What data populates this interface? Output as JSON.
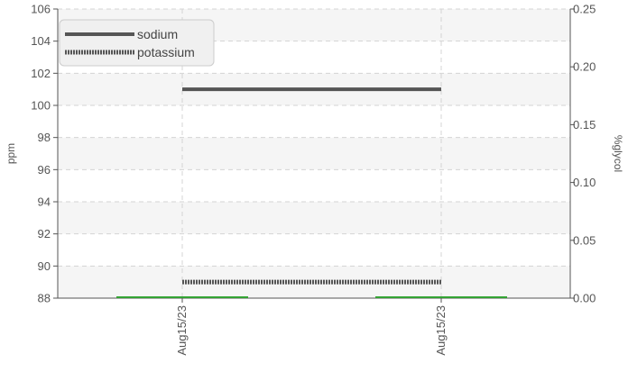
{
  "chart_data": {
    "type": "line",
    "x": [
      "Aug15/23",
      "Aug15/23"
    ],
    "ylabel": "ppm",
    "y2label": "%glycol",
    "ylim": [
      88,
      106
    ],
    "yticks": [
      88,
      90,
      92,
      94,
      96,
      98,
      100,
      102,
      104,
      106
    ],
    "y2lim": [
      0,
      0.25
    ],
    "y2ticks": [
      "0.00",
      "0.05",
      "0.10",
      "0.15",
      "0.20",
      "0.25"
    ],
    "grid": true,
    "legend_position": "top-left",
    "series": [
      {
        "name": "sodium",
        "axis": "left",
        "values": [
          101,
          101
        ],
        "color": "#555555",
        "style": "solid"
      },
      {
        "name": "potassium",
        "axis": "left",
        "values": [
          89,
          89
        ],
        "color": "#555555",
        "style": "dotted"
      },
      {
        "axis": "right",
        "values": [
          0,
          0
        ],
        "color": "#33a333",
        "style": "solid"
      }
    ]
  }
}
